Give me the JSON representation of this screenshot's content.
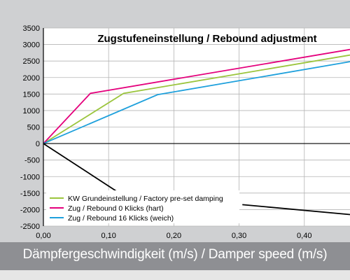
{
  "chart_data": {
    "type": "line",
    "title": "Zugstufeneinstellung / Rebound adjustment",
    "xlabel": "Dämpfergeschwindigkeit (m/s) / Damper speed (m/s)",
    "ylabel": "",
    "xlim": [
      0,
      0.47
    ],
    "ylim": [
      -2500,
      3500
    ],
    "x_ticks": [
      "0,00",
      "0,10",
      "0,20",
      "0,30",
      "0,40"
    ],
    "x_tick_values": [
      0,
      0.1,
      0.2,
      0.3,
      0.4
    ],
    "y_ticks": [
      "3500",
      "3000",
      "2500",
      "2000",
      "1500",
      "1000",
      "500",
      "0",
      "-500",
      "-1000",
      "-1500",
      "-2000",
      "-2500"
    ],
    "y_tick_values": [
      3500,
      3000,
      2500,
      2000,
      1500,
      1000,
      500,
      0,
      -500,
      -1000,
      -1500,
      -2000,
      -2500
    ],
    "grid": true,
    "legend_position": "bottom-left",
    "series": [
      {
        "name": "KW Grundeinstellung / Factory pre-set damping",
        "color": "#9bc53d",
        "points": [
          [
            0,
            0
          ],
          [
            0.123,
            1520
          ],
          [
            0.47,
            2680
          ]
        ]
      },
      {
        "name": "Zug / Rebound 0 Klicks (hart)",
        "color": "#e4007c",
        "points": [
          [
            0,
            0
          ],
          [
            0.072,
            1520
          ],
          [
            0.47,
            2850
          ]
        ]
      },
      {
        "name": "Zug / Rebound 16 Klicks (weich)",
        "color": "#1ea0dc",
        "points": [
          [
            0,
            0
          ],
          [
            0.175,
            1480
          ],
          [
            0.47,
            2480
          ]
        ]
      }
    ],
    "unlabeled_series": [
      {
        "color": "#000000",
        "segments": [
          [
            [
              0,
              0
            ],
            [
              0.118,
              -1520
            ]
          ],
          [
            [
              0.305,
              -1850
            ],
            [
              0.47,
              -2150
            ]
          ]
        ]
      }
    ]
  }
}
